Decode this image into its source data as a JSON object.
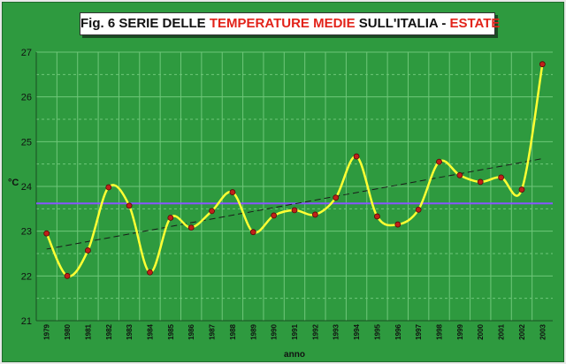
{
  "title": {
    "prefix": "Fig. 6  SERIE DELLE ",
    "highlight1": "TEMPERATURE MEDIE",
    "middle": " SULL'ITALIA - ",
    "highlight2": "ESTATE"
  },
  "colors": {
    "background": "#2e9a3f",
    "grid": "#6fc77a",
    "series": "#ffff33",
    "marker": "#c0201a",
    "trend": "#1a1a1a",
    "mean": "#8855ff",
    "title_highlight": "#e2231a"
  },
  "chart_data": {
    "type": "line",
    "xlabel": "anno",
    "ylabel": "°C",
    "ylim": [
      21,
      27
    ],
    "yticks": [
      21,
      22,
      23,
      24,
      25,
      26,
      27
    ],
    "grid": true,
    "smooth": true,
    "x": [
      "1979",
      "1980",
      "1981",
      "1982",
      "1983",
      "1984",
      "1985",
      "1986",
      "1987",
      "1988",
      "1989",
      "1990",
      "1991",
      "1992",
      "1993",
      "1994",
      "1995",
      "1996",
      "1997",
      "1998",
      "1999",
      "2000",
      "2001",
      "2002",
      "2003"
    ],
    "series": [
      {
        "values": [
          22.95,
          22.0,
          22.57,
          23.98,
          23.57,
          22.08,
          23.3,
          23.08,
          23.45,
          23.87,
          22.98,
          23.35,
          23.47,
          23.37,
          23.75,
          24.67,
          23.33,
          23.15,
          23.48,
          24.55,
          24.25,
          24.1,
          24.2,
          23.93,
          26.73
        ]
      }
    ],
    "trend_line": {
      "start": [
        1979,
        22.6
      ],
      "end": [
        2003,
        24.62
      ]
    },
    "mean_line": 23.62
  }
}
